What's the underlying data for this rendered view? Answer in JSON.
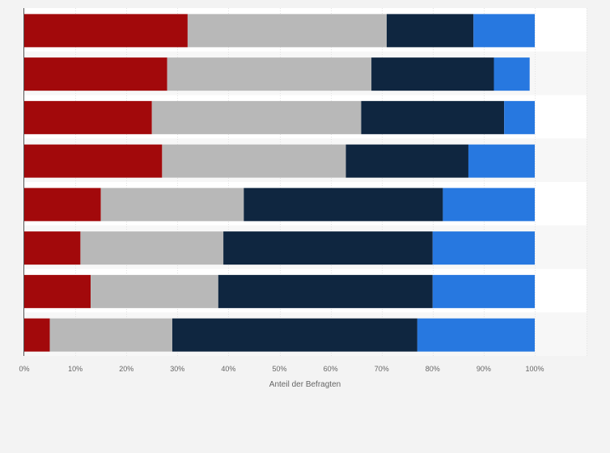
{
  "chart_data": {
    "type": "bar",
    "orientation": "horizontal",
    "stacked": true,
    "xlabel": "Anteil der Befragten",
    "xlim": [
      0,
      100
    ],
    "ticks": [
      "0%",
      "10%",
      "20%",
      "30%",
      "40%",
      "50%",
      "60%",
      "70%",
      "80%",
      "90%",
      "100%"
    ],
    "tick_values": [
      0,
      10,
      20,
      30,
      40,
      50,
      60,
      70,
      80,
      90,
      100
    ],
    "grid": true,
    "legend": "none",
    "colors": [
      "#a2090b",
      "#b8b8b8",
      "#0f2640",
      "#2778e0"
    ],
    "rows": 8,
    "series": [
      {
        "values": [
          32,
          28,
          25,
          27,
          15,
          11,
          13,
          5
        ]
      },
      {
        "values": [
          39,
          40,
          41,
          36,
          28,
          28,
          25,
          24
        ]
      },
      {
        "values": [
          17,
          24,
          28,
          24,
          39,
          41,
          42,
          48
        ]
      },
      {
        "values": [
          12,
          7,
          6,
          13,
          18,
          20,
          20,
          23
        ]
      }
    ]
  }
}
